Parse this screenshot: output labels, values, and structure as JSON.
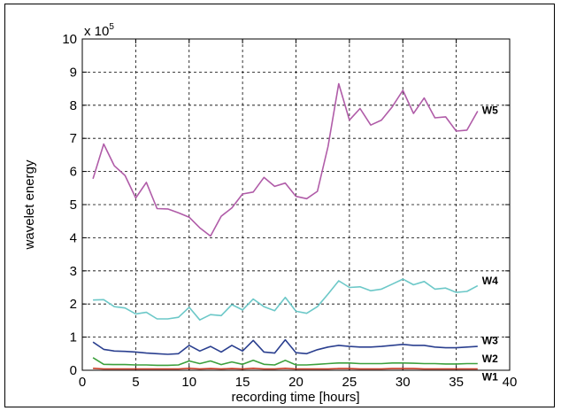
{
  "chart_data": {
    "type": "line",
    "xlabel": "recording time [hours]",
    "ylabel": "wavelet energy",
    "multiplier_base": "x 10",
    "multiplier_exp": "5",
    "xlim": [
      0,
      40
    ],
    "ylim": [
      0,
      10
    ],
    "xticks": [
      0,
      5,
      10,
      15,
      20,
      25,
      30,
      35,
      40
    ],
    "yticks": [
      0,
      1,
      2,
      3,
      4,
      5,
      6,
      7,
      8,
      9,
      10
    ],
    "grid": true,
    "x": [
      1,
      2,
      3,
      4,
      5,
      6,
      7,
      8,
      9,
      10,
      11,
      12,
      13,
      14,
      15,
      16,
      17,
      18,
      19,
      20,
      21,
      22,
      23,
      24,
      25,
      26,
      27,
      28,
      29,
      30,
      31,
      32,
      33,
      34,
      35,
      36,
      37
    ],
    "series": [
      {
        "name": "W5",
        "color": "#b05ca8",
        "values": [
          5.78,
          6.83,
          6.17,
          5.88,
          5.2,
          5.67,
          4.88,
          4.87,
          4.75,
          4.62,
          4.3,
          4.05,
          4.65,
          4.9,
          5.32,
          5.38,
          5.82,
          5.55,
          5.65,
          5.25,
          5.18,
          5.4,
          6.75,
          8.65,
          7.55,
          7.9,
          7.4,
          7.55,
          7.95,
          8.45,
          7.75,
          8.22,
          7.62,
          7.65,
          7.22,
          7.25,
          7.82
        ]
      },
      {
        "name": "W4",
        "color": "#6cc8c8",
        "values": [
          2.12,
          2.13,
          1.92,
          1.88,
          1.7,
          1.75,
          1.55,
          1.55,
          1.6,
          1.9,
          1.52,
          1.68,
          1.65,
          1.98,
          1.82,
          2.15,
          1.92,
          1.8,
          2.2,
          1.78,
          1.72,
          1.92,
          2.3,
          2.7,
          2.5,
          2.52,
          2.4,
          2.45,
          2.6,
          2.75,
          2.58,
          2.68,
          2.45,
          2.48,
          2.35,
          2.38,
          2.55
        ]
      },
      {
        "name": "W3",
        "color": "#2a3f8f",
        "values": [
          0.85,
          0.63,
          0.58,
          0.57,
          0.55,
          0.52,
          0.5,
          0.48,
          0.5,
          0.75,
          0.58,
          0.72,
          0.55,
          0.75,
          0.58,
          0.9,
          0.55,
          0.52,
          0.92,
          0.53,
          0.5,
          0.62,
          0.7,
          0.75,
          0.72,
          0.7,
          0.7,
          0.72,
          0.75,
          0.78,
          0.75,
          0.75,
          0.7,
          0.68,
          0.68,
          0.7,
          0.72
        ]
      },
      {
        "name": "W2",
        "color": "#3ca03c",
        "values": [
          0.38,
          0.18,
          0.17,
          0.17,
          0.16,
          0.16,
          0.15,
          0.15,
          0.16,
          0.28,
          0.2,
          0.28,
          0.17,
          0.25,
          0.18,
          0.3,
          0.18,
          0.16,
          0.3,
          0.16,
          0.16,
          0.18,
          0.2,
          0.22,
          0.22,
          0.2,
          0.2,
          0.2,
          0.22,
          0.22,
          0.21,
          0.2,
          0.2,
          0.19,
          0.19,
          0.2,
          0.2
        ]
      },
      {
        "name": "W1",
        "color": "#c83a22",
        "values": [
          0.06,
          0.04,
          0.04,
          0.04,
          0.04,
          0.04,
          0.04,
          0.04,
          0.04,
          0.06,
          0.04,
          0.05,
          0.04,
          0.05,
          0.04,
          0.06,
          0.04,
          0.04,
          0.06,
          0.04,
          0.04,
          0.04,
          0.04,
          0.05,
          0.05,
          0.04,
          0.04,
          0.04,
          0.05,
          0.05,
          0.05,
          0.04,
          0.04,
          0.04,
          0.04,
          0.04,
          0.04
        ]
      }
    ]
  }
}
